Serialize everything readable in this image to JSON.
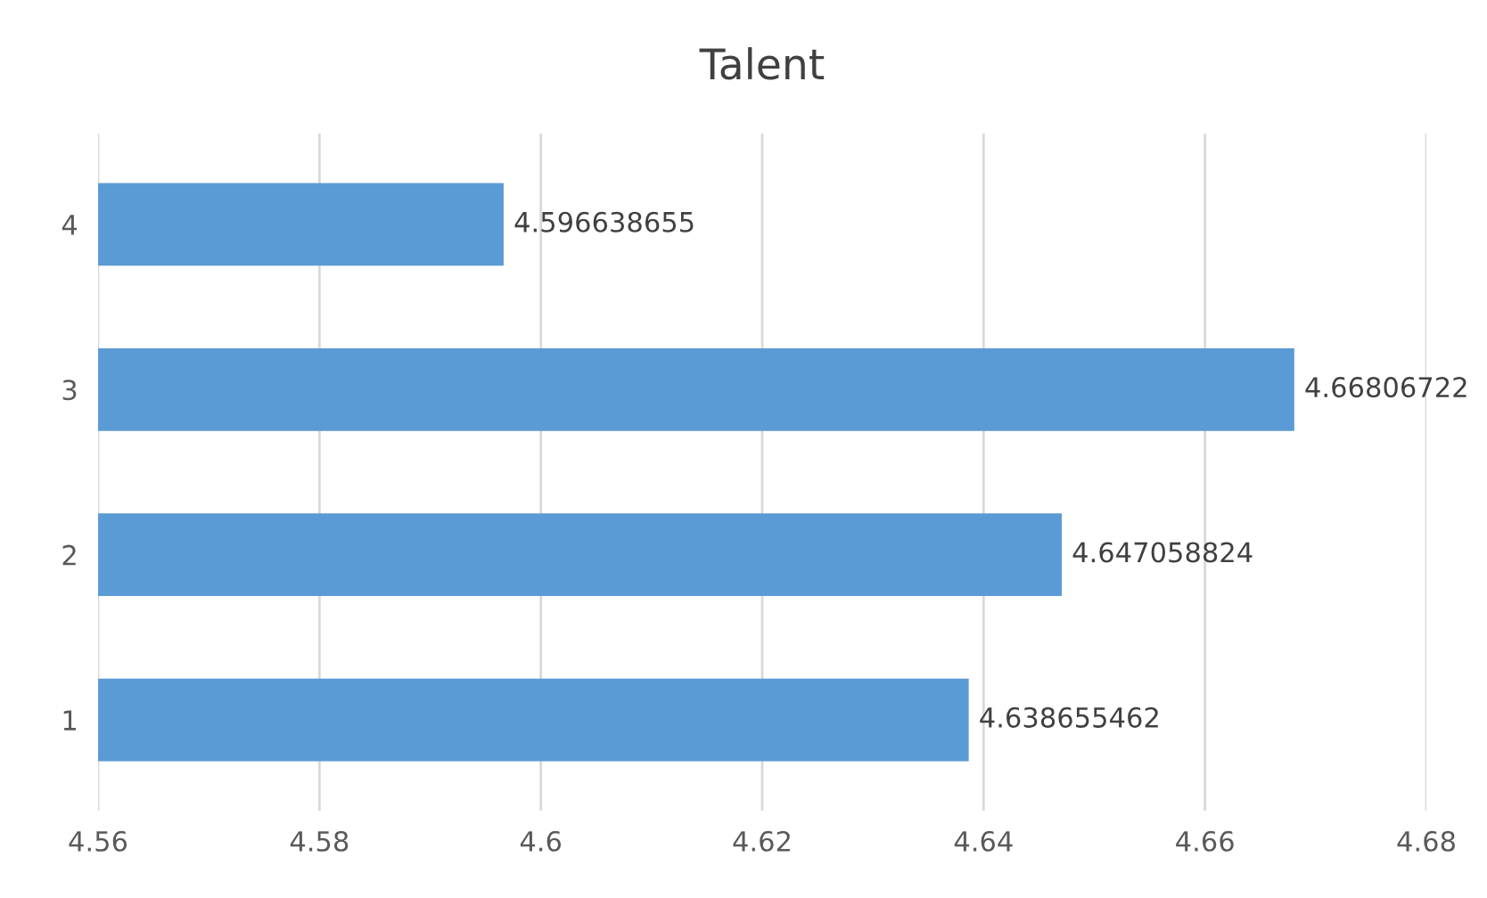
{
  "chart_data": {
    "type": "bar",
    "orientation": "horizontal",
    "title": "Talent",
    "categories": [
      "4",
      "3",
      "2",
      "1"
    ],
    "values": [
      4.596638655,
      4.66806722,
      4.647058824,
      4.638655462
    ],
    "color": "#5b9bd5",
    "xlim": [
      4.56,
      4.68
    ],
    "xticks": [
      4.56,
      4.58,
      4.6,
      4.62,
      4.64,
      4.66,
      4.68
    ],
    "grid": "x",
    "data_labels": true
  }
}
